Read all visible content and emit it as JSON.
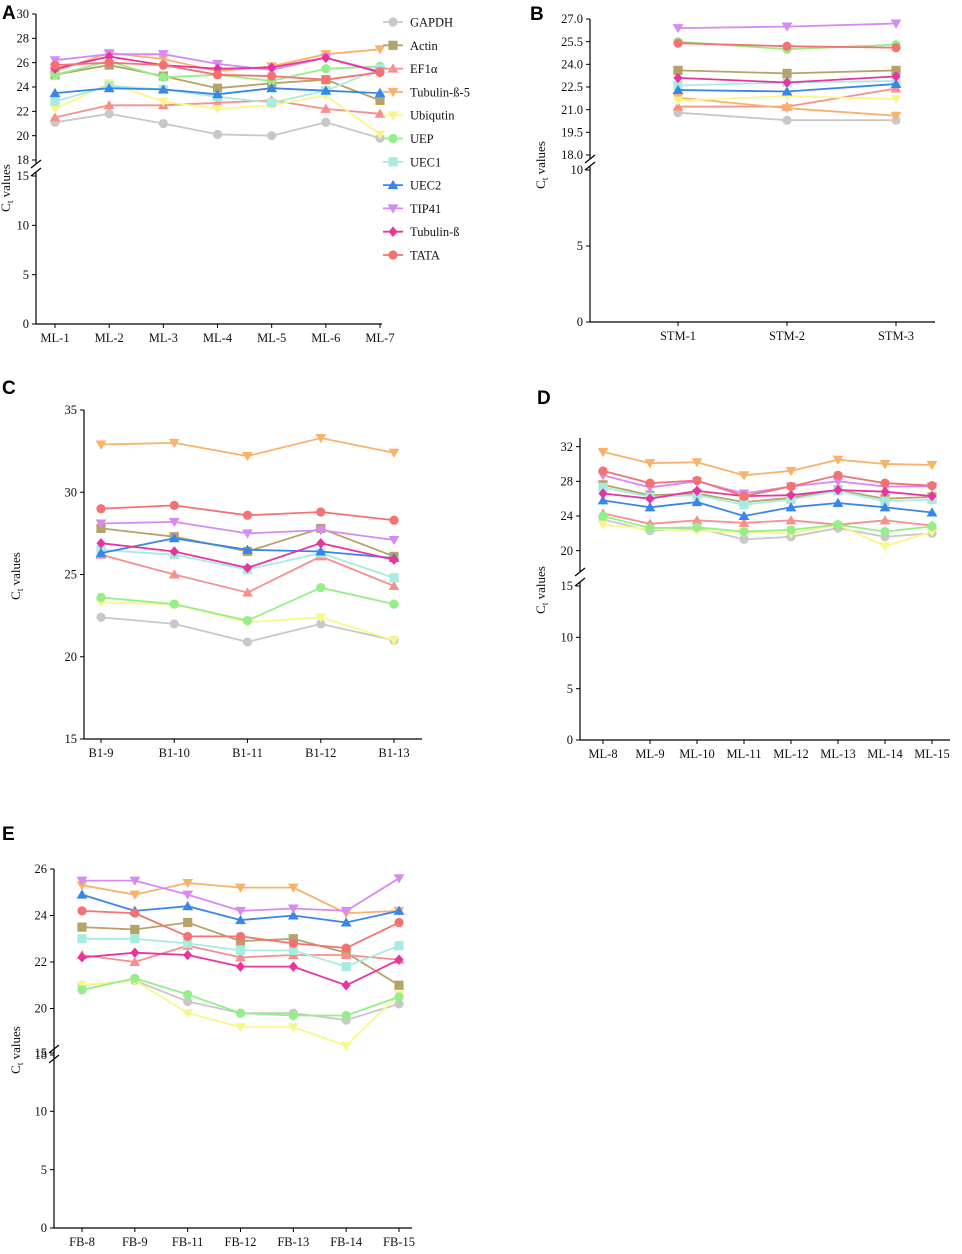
{
  "figure": {
    "legend": {
      "position": "upper-right of panel A",
      "entries": [
        {
          "name": "GAPDH",
          "color": "#c8c8c8",
          "marker": "circle"
        },
        {
          "name": "Actin",
          "color": "#b5a46a",
          "marker": "square"
        },
        {
          "name": "EF1α",
          "color": "#f4908e",
          "marker": "triangle-up"
        },
        {
          "name": "Tubulin-ß-5",
          "color": "#f8b26a",
          "marker": "triangle-down"
        },
        {
          "name": "Ubiqutin",
          "color": "#f8f88a",
          "marker": "triangle-down"
        },
        {
          "name": "UEP",
          "color": "#94ef8a",
          "marker": "circle"
        },
        {
          "name": "UEC1",
          "color": "#a8ece0",
          "marker": "square"
        },
        {
          "name": "UEC2",
          "color": "#3a86e8",
          "marker": "triangle-up"
        },
        {
          "name": "TIP41",
          "color": "#d68af2",
          "marker": "triangle-down"
        },
        {
          "name": "Tubulin-ß",
          "color": "#e8349e",
          "marker": "diamond"
        },
        {
          "name": "TATA",
          "color": "#f47272",
          "marker": "circle"
        }
      ]
    }
  },
  "chart_data": [
    {
      "panel": "A",
      "type": "line",
      "ylabel_main": "C",
      "ylabel_sub": "t",
      "ylabel_rest": " values",
      "xlabel": "",
      "categories": [
        "ML-1",
        "ML-2",
        "ML-3",
        "ML-4",
        "ML-5",
        "ML-6",
        "ML-7"
      ],
      "broken_axis": true,
      "lower_ylim": [
        0,
        15
      ],
      "lower_ticks": [
        "0",
        "5",
        "10",
        "15"
      ],
      "upper_ylim": [
        18,
        30
      ],
      "upper_ticks": [
        "18",
        "20",
        "22",
        "24",
        "26",
        "28",
        "30"
      ],
      "series": [
        {
          "name": "GAPDH",
          "values": [
            21.1,
            21.8,
            21.0,
            20.1,
            20.0,
            21.1,
            19.8
          ]
        },
        {
          "name": "Actin",
          "values": [
            25.0,
            25.8,
            24.9,
            23.9,
            24.3,
            24.6,
            22.9
          ]
        },
        {
          "name": "EF1α",
          "values": [
            21.5,
            22.5,
            22.5,
            22.7,
            22.9,
            22.2,
            21.8
          ]
        },
        {
          "name": "Tubulin-ß-5",
          "values": [
            25.3,
            26.8,
            26.3,
            25.3,
            25.7,
            26.7,
            27.1
          ]
        },
        {
          "name": "Ubiqutin",
          "values": [
            22.2,
            24.3,
            22.8,
            22.2,
            22.5,
            23.3,
            20.1
          ]
        },
        {
          "name": "UEP",
          "values": [
            25.0,
            26.1,
            24.8,
            25.0,
            24.5,
            25.5,
            25.7
          ]
        },
        {
          "name": "UEC1",
          "values": [
            22.8,
            24.1,
            23.8,
            23.2,
            22.7,
            23.7,
            25.5
          ]
        },
        {
          "name": "UEC2",
          "values": [
            23.5,
            23.9,
            23.8,
            23.4,
            23.9,
            23.7,
            23.5
          ]
        },
        {
          "name": "TIP41",
          "values": [
            26.2,
            26.7,
            26.7,
            25.9,
            25.4,
            26.4,
            25.3
          ]
        },
        {
          "name": "Tubulin-ß",
          "values": [
            25.5,
            26.5,
            25.8,
            25.5,
            25.6,
            26.4,
            25.2
          ]
        },
        {
          "name": "TATA",
          "values": [
            25.8,
            26.0,
            25.8,
            25.0,
            24.9,
            24.6,
            25.2
          ]
        }
      ]
    },
    {
      "panel": "B",
      "type": "line",
      "ylabel_main": "C",
      "ylabel_sub": "t",
      "ylabel_rest": " values",
      "xlabel": "",
      "categories": [
        "STM-1",
        "STM-2",
        "STM-3"
      ],
      "broken_axis": true,
      "lower_ylim": [
        0,
        10
      ],
      "lower_ticks": [
        "0",
        "5",
        "10"
      ],
      "upper_ylim": [
        18,
        27
      ],
      "upper_ticks": [
        "18.0",
        "19.5",
        "21.0",
        "22.5",
        "24.0",
        "25.5",
        "27.0"
      ],
      "series": [
        {
          "name": "GAPDH",
          "values": [
            20.8,
            20.3,
            20.3
          ]
        },
        {
          "name": "Actin",
          "values": [
            23.6,
            23.4,
            23.6
          ]
        },
        {
          "name": "EF1α",
          "values": [
            21.2,
            21.2,
            22.4
          ]
        },
        {
          "name": "Tubulin-ß-5",
          "values": [
            21.8,
            21.1,
            20.6
          ]
        },
        {
          "name": "Ubiqutin",
          "values": [
            21.6,
            21.9,
            21.7
          ]
        },
        {
          "name": "UEP",
          "values": [
            25.5,
            25.0,
            25.3
          ]
        },
        {
          "name": "UEC1",
          "values": [
            22.6,
            22.8,
            22.9
          ]
        },
        {
          "name": "UEC2",
          "values": [
            22.3,
            22.2,
            22.7
          ]
        },
        {
          "name": "TIP41",
          "values": [
            26.4,
            26.5,
            26.7
          ]
        },
        {
          "name": "Tubulin-ß",
          "values": [
            23.1,
            22.8,
            23.2
          ]
        },
        {
          "name": "TATA",
          "values": [
            25.4,
            25.2,
            25.1
          ]
        }
      ]
    },
    {
      "panel": "C",
      "type": "line",
      "ylabel_main": "C",
      "ylabel_sub": "t",
      "ylabel_rest": " values",
      "xlabel": "",
      "categories": [
        "B1-9",
        "B1-10",
        "B1-11",
        "B1-12",
        "B1-13"
      ],
      "broken_axis": false,
      "ylim": [
        15,
        35
      ],
      "ticks": [
        "15",
        "20",
        "25",
        "30",
        "35"
      ],
      "series": [
        {
          "name": "GAPDH",
          "values": [
            22.4,
            22.0,
            20.9,
            22.0,
            21.0
          ]
        },
        {
          "name": "Actin",
          "values": [
            27.8,
            27.3,
            26.4,
            27.8,
            26.1
          ]
        },
        {
          "name": "EF1α",
          "values": [
            26.2,
            25.0,
            23.9,
            26.1,
            24.3
          ]
        },
        {
          "name": "Tubulin-ß-5",
          "values": [
            32.9,
            33.0,
            32.2,
            33.3,
            32.4
          ]
        },
        {
          "name": "Ubiqutin",
          "values": [
            23.3,
            23.2,
            22.1,
            22.4,
            21.0
          ]
        },
        {
          "name": "UEP",
          "values": [
            23.6,
            23.2,
            22.2,
            24.2,
            23.2
          ]
        },
        {
          "name": "UEC1",
          "values": [
            26.5,
            26.2,
            25.3,
            26.3,
            24.8
          ]
        },
        {
          "name": "UEC2",
          "values": [
            26.3,
            27.2,
            26.5,
            26.4,
            26.0
          ]
        },
        {
          "name": "TIP41",
          "values": [
            28.1,
            28.2,
            27.5,
            27.7,
            27.1
          ]
        },
        {
          "name": "Tubulin-ß",
          "values": [
            26.9,
            26.4,
            25.4,
            26.9,
            25.9
          ]
        },
        {
          "name": "TATA",
          "values": [
            29.0,
            29.2,
            28.6,
            28.8,
            28.3
          ]
        }
      ]
    },
    {
      "panel": "D",
      "type": "line",
      "ylabel_main": "C",
      "ylabel_sub": "t",
      "ylabel_rest": " values",
      "xlabel": "",
      "categories": [
        "ML-8",
        "ML-9",
        "ML-10",
        "ML-11",
        "ML-12",
        "ML-13",
        "ML-14",
        "ML-15"
      ],
      "broken_axis": true,
      "lower_ylim": [
        0,
        15
      ],
      "lower_ticks": [
        "0",
        "5",
        "10",
        "15"
      ],
      "upper_ylim": [
        18,
        33
      ],
      "upper_ticks": [
        "20",
        "24",
        "28",
        "32"
      ],
      "series": [
        {
          "name": "GAPDH",
          "values": [
            23.6,
            22.3,
            22.6,
            21.3,
            21.6,
            22.6,
            21.6,
            22.0
          ]
        },
        {
          "name": "Actin",
          "values": [
            27.6,
            26.4,
            26.6,
            25.6,
            26.1,
            27.0,
            26.0,
            26.2
          ]
        },
        {
          "name": "EF1α",
          "values": [
            24.3,
            23.1,
            23.5,
            23.2,
            23.5,
            23.0,
            23.5,
            22.9
          ]
        },
        {
          "name": "Tubulin-ß-5",
          "values": [
            31.4,
            30.1,
            30.2,
            28.7,
            29.2,
            30.5,
            30.0,
            29.9
          ]
        },
        {
          "name": "Ubiqutin",
          "values": [
            23.0,
            22.5,
            22.3,
            22.1,
            22.0,
            23.0,
            20.5,
            22.2
          ]
        },
        {
          "name": "UEP",
          "values": [
            24.0,
            22.6,
            22.7,
            22.2,
            22.4,
            23.0,
            22.2,
            22.8
          ]
        },
        {
          "name": "UEC1",
          "values": [
            27.3,
            26.2,
            26.4,
            25.3,
            25.9,
            26.9,
            25.7,
            25.9
          ]
        },
        {
          "name": "UEC2",
          "values": [
            25.8,
            25.0,
            25.6,
            24.0,
            25.0,
            25.5,
            25.0,
            24.4
          ]
        },
        {
          "name": "TIP41",
          "values": [
            28.7,
            27.3,
            28.0,
            26.6,
            27.4,
            28.0,
            27.4,
            27.4
          ]
        },
        {
          "name": "Tubulin-ß",
          "values": [
            26.6,
            26.0,
            26.9,
            26.3,
            26.4,
            27.0,
            26.8,
            26.3
          ]
        },
        {
          "name": "TATA",
          "values": [
            29.2,
            27.8,
            28.1,
            26.3,
            27.4,
            28.7,
            27.8,
            27.5
          ]
        }
      ]
    },
    {
      "panel": "E",
      "type": "line",
      "ylabel_main": "C",
      "ylabel_sub": "t",
      "ylabel_rest": " values",
      "xlabel": "",
      "categories": [
        "FB-8",
        "FB-9",
        "FB-11",
        "FB-12",
        "FB-13",
        "FB-14",
        "FB-15"
      ],
      "broken_axis": true,
      "lower_ylim": [
        0,
        15
      ],
      "lower_ticks": [
        "0",
        "5",
        "10",
        "15"
      ],
      "upper_ylim": [
        18,
        26
      ],
      "upper_ticks": [
        "18",
        "20",
        "22",
        "24",
        "26"
      ],
      "series": [
        {
          "name": "GAPDH",
          "values": [
            21.0,
            21.2,
            20.3,
            19.8,
            19.8,
            19.5,
            20.2
          ]
        },
        {
          "name": "Actin",
          "values": [
            23.5,
            23.4,
            23.7,
            22.9,
            23.0,
            22.4,
            21.0
          ]
        },
        {
          "name": "EF1α",
          "values": [
            22.3,
            22.0,
            22.7,
            22.2,
            22.3,
            22.3,
            22.1
          ]
        },
        {
          "name": "Tubulin-ß-5",
          "values": [
            25.3,
            24.9,
            25.4,
            25.2,
            25.2,
            24.1,
            24.2
          ]
        },
        {
          "name": "Ubiqutin",
          "values": [
            21.0,
            21.2,
            19.8,
            19.2,
            19.2,
            18.4,
            20.6
          ]
        },
        {
          "name": "UEP",
          "values": [
            20.8,
            21.3,
            20.6,
            19.8,
            19.7,
            19.7,
            20.5
          ]
        },
        {
          "name": "UEC1",
          "values": [
            23.0,
            23.0,
            22.8,
            22.5,
            22.5,
            21.8,
            22.7
          ]
        },
        {
          "name": "UEC2",
          "values": [
            24.9,
            24.2,
            24.4,
            23.8,
            24.0,
            23.7,
            24.2
          ]
        },
        {
          "name": "TIP41",
          "values": [
            25.5,
            25.5,
            24.9,
            24.2,
            24.3,
            24.2,
            25.6
          ]
        },
        {
          "name": "Tubulin-ß",
          "values": [
            22.2,
            22.4,
            22.3,
            21.8,
            21.8,
            21.0,
            22.1
          ]
        },
        {
          "name": "TATA",
          "values": [
            24.2,
            24.1,
            23.1,
            23.1,
            22.8,
            22.6,
            23.7
          ]
        }
      ]
    }
  ]
}
